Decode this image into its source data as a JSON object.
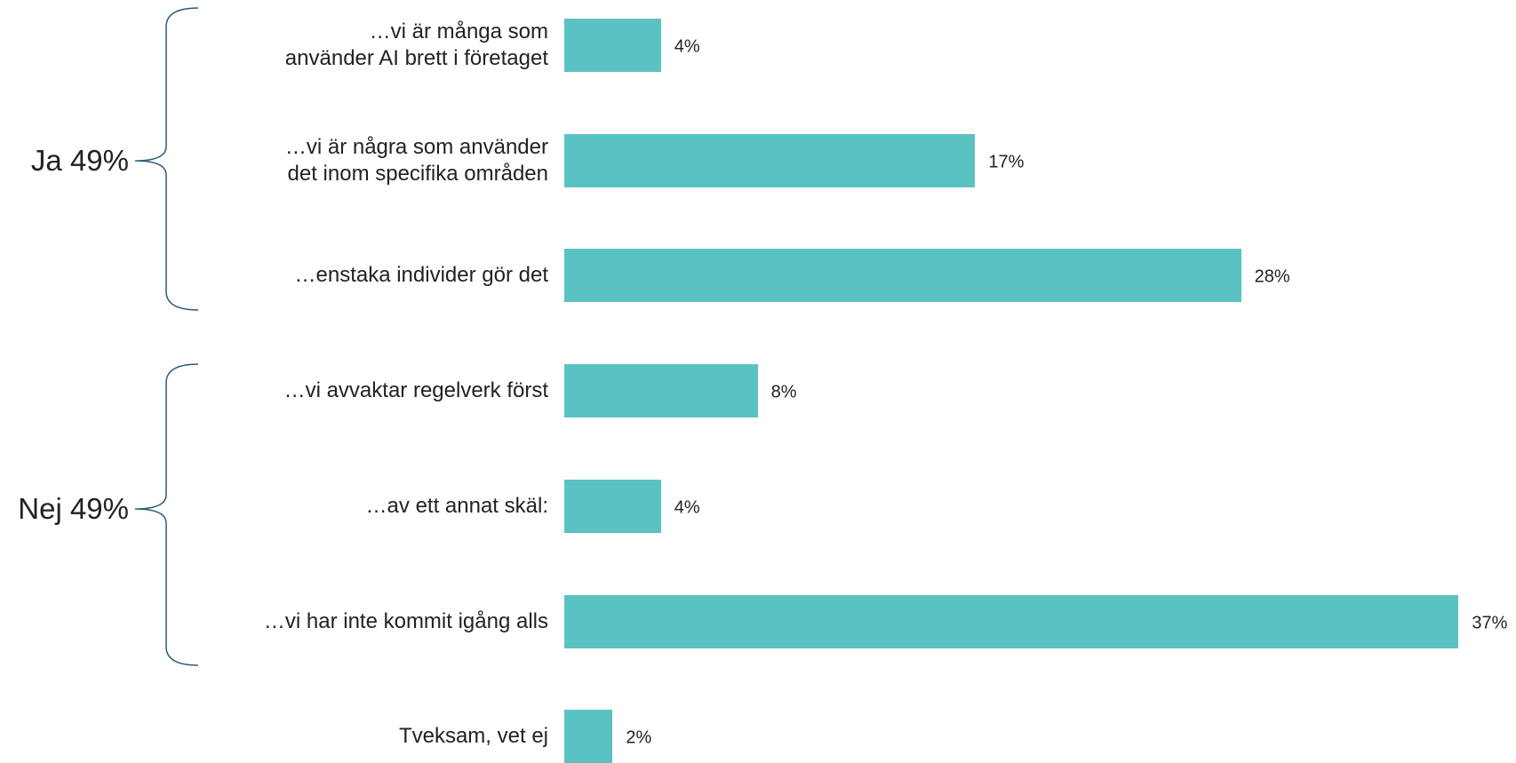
{
  "chart_data": {
    "type": "bar",
    "orientation": "horizontal",
    "categories": [
      "…vi är många som\nanvänder AI brett i företaget",
      "…vi är några som använder\ndet inom specifika områden",
      "…enstaka individer gör det",
      "…vi avvaktar regelverk först",
      "…av ett annat skäl:",
      "…vi har inte kommit igång alls",
      "Tveksam, vet ej"
    ],
    "values": [
      4,
      17,
      28,
      8,
      4,
      37,
      2
    ],
    "value_labels": [
      "4%",
      "17%",
      "28%",
      "8%",
      "4%",
      "37%",
      "2%"
    ],
    "color": "#5bc2c4",
    "annotations": [
      "Ja 49%",
      "Nej 49%"
    ]
  }
}
